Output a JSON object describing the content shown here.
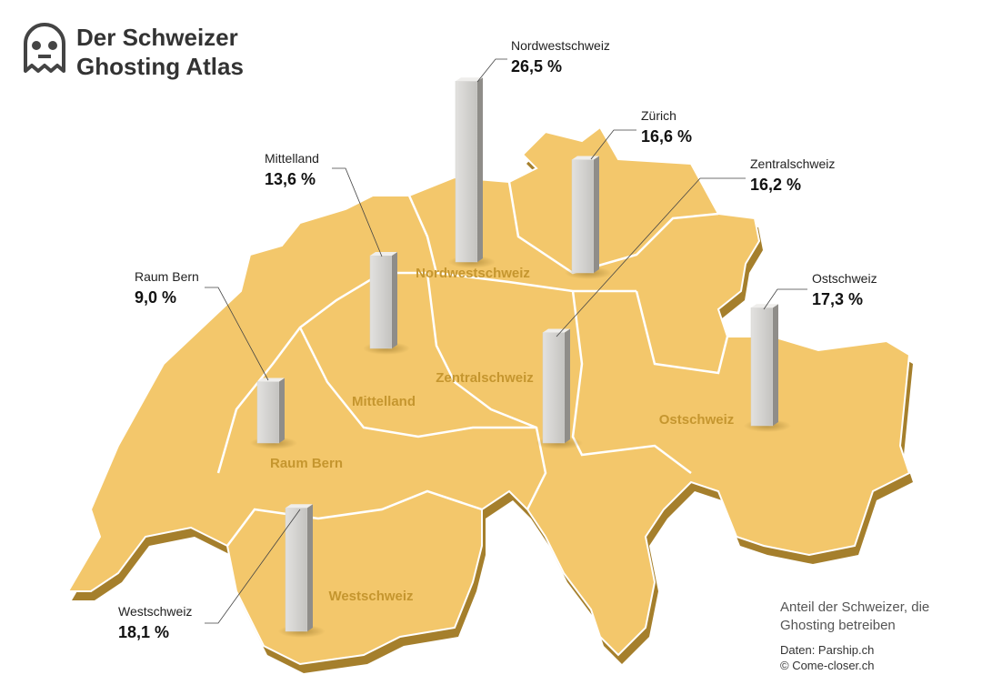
{
  "chart_data": {
    "type": "bar",
    "title": "Der Schweizer Ghosting Atlas",
    "categories": [
      "Nordwestschweiz",
      "Zürich",
      "Zentralschweiz",
      "Mittelland",
      "Raum Bern",
      "Ostschweiz",
      "Westschweiz"
    ],
    "values": [
      26.5,
      16.6,
      16.2,
      13.6,
      9.0,
      17.3,
      18.1
    ],
    "value_labels": [
      "26,5 %",
      "16,6 %",
      "16,2 %",
      "13,6 %",
      "9,0 %",
      "17,3 %",
      "18,1 %"
    ],
    "color": "#d4d3d0",
    "note": "Anteil der Schweizer, die Ghosting betreiben",
    "source": "Daten: Parship.ch",
    "credit": "© Come-closer.ch"
  }
}
